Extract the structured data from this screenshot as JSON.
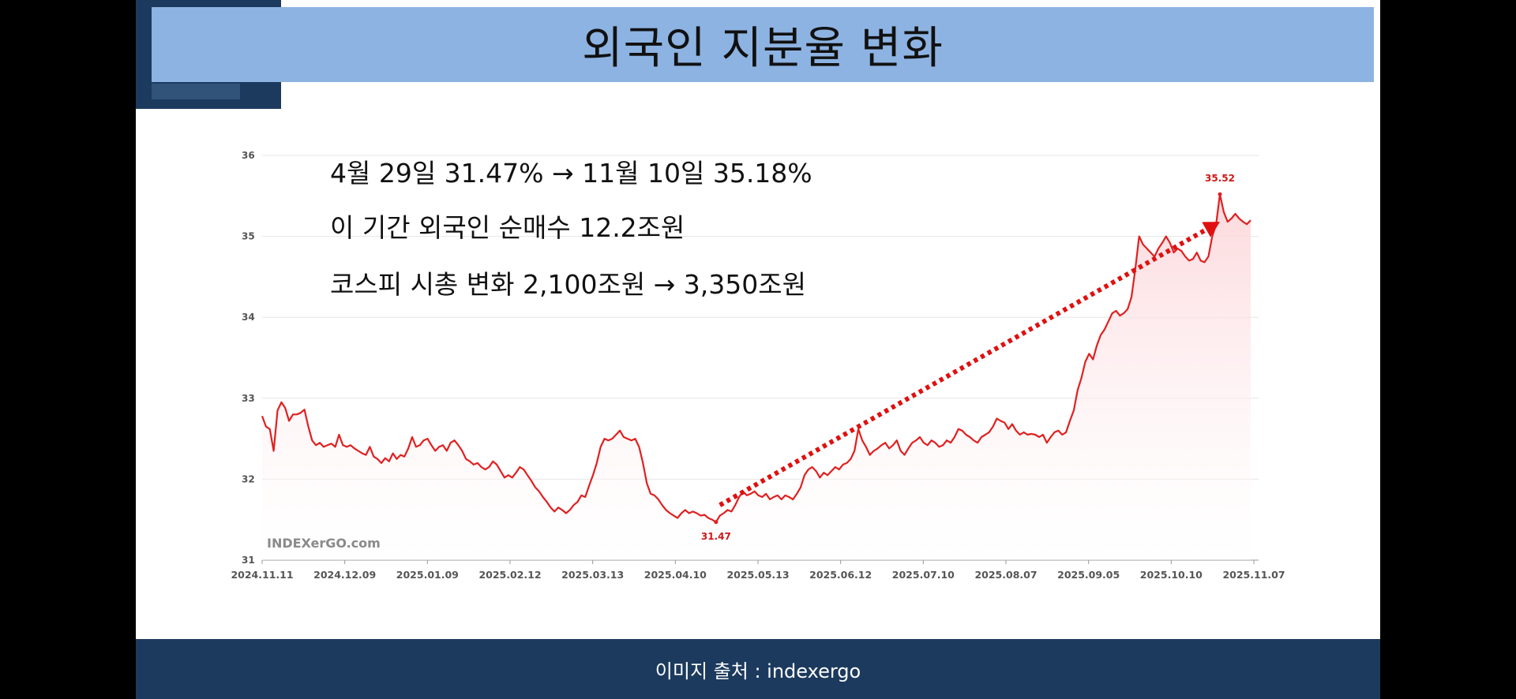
{
  "slide_title": "외국인 지분율 변화",
  "notes": [
    "4월 29일 31.47% → 11월 10일 35.18%",
    "이 기간 외국인 순매수 12.2조원",
    "코스피 시총 변화 2,100조원 → 3,350조원"
  ],
  "footer": "이미지 출처  : indexergo",
  "watermark": "INDEXerGO.com",
  "colors": {
    "line": "#e02020",
    "fill": "#fde4e6",
    "title_bar": "#8db3e2",
    "footer_bar": "#1c3a5e"
  },
  "chart_data": {
    "type": "line",
    "title": "",
    "xlabel": "",
    "ylabel": "",
    "ylim": [
      31,
      36
    ],
    "grid": true,
    "x_ticks": [
      "2024.11.11",
      "2024.12.09",
      "2025.01.09",
      "2025.02.12",
      "2025.03.13",
      "2025.04.10",
      "2025.05.13",
      "2025.06.12",
      "2025.07.10",
      "2025.08.07",
      "2025.09.05",
      "2025.10.10",
      "2025.11.07"
    ],
    "y_ticks": [
      31,
      32,
      33,
      34,
      35,
      36
    ],
    "series": [
      {
        "values": [
          32.78,
          32.65,
          32.62,
          32.35,
          32.85,
          32.95,
          32.88,
          32.72,
          32.8,
          32.8,
          32.82,
          32.86,
          32.65,
          32.48,
          32.42,
          32.45,
          32.4,
          32.42,
          32.44,
          32.4,
          32.55,
          32.42,
          32.4,
          32.42,
          32.38,
          32.35,
          32.32,
          32.3,
          32.4,
          32.28,
          32.25,
          32.2,
          32.26,
          32.22,
          32.32,
          32.25,
          32.3,
          32.28,
          32.38,
          32.52,
          32.4,
          32.42,
          32.48,
          32.5,
          32.42,
          32.35,
          32.4,
          32.42,
          32.35,
          32.45,
          32.48,
          32.42,
          32.35,
          32.25,
          32.22,
          32.18,
          32.2,
          32.15,
          32.12,
          32.15,
          32.22,
          32.18,
          32.1,
          32.02,
          32.05,
          32.02,
          32.08,
          32.15,
          32.12,
          32.05,
          31.98,
          31.9,
          31.85,
          31.78,
          31.72,
          31.65,
          31.6,
          31.65,
          31.62,
          31.58,
          31.62,
          31.68,
          31.72,
          31.8,
          31.78,
          31.92,
          32.05,
          32.2,
          32.4,
          32.5,
          32.48,
          32.5,
          32.55,
          32.6,
          32.52,
          32.5,
          32.48,
          32.5,
          32.4,
          32.2,
          31.95,
          31.82,
          31.8,
          31.75,
          31.68,
          31.62,
          31.58,
          31.55,
          31.52,
          31.58,
          31.62,
          31.58,
          31.6,
          31.58,
          31.55,
          31.56,
          31.52,
          31.5,
          31.47,
          31.55,
          31.58,
          31.62,
          31.6,
          31.68,
          31.78,
          31.85,
          31.8,
          31.82,
          31.85,
          31.8,
          31.78,
          31.82,
          31.75,
          31.78,
          31.8,
          31.75,
          31.8,
          31.78,
          31.75,
          31.82,
          31.9,
          32.05,
          32.12,
          32.15,
          32.1,
          32.02,
          32.08,
          32.05,
          32.1,
          32.15,
          32.12,
          32.18,
          32.2,
          32.25,
          32.35,
          32.62,
          32.48,
          32.4,
          32.3,
          32.35,
          32.38,
          32.42,
          32.45,
          32.38,
          32.42,
          32.48,
          32.35,
          32.3,
          32.38,
          32.45,
          32.48,
          32.52,
          32.45,
          32.42,
          32.48,
          32.45,
          32.4,
          32.42,
          32.48,
          32.45,
          32.52,
          32.62,
          32.6,
          32.55,
          32.52,
          32.48,
          32.45,
          32.52,
          32.55,
          32.58,
          32.65,
          32.75,
          32.72,
          32.7,
          32.62,
          32.68,
          32.6,
          32.55,
          32.58,
          32.55,
          32.56,
          32.55,
          32.52,
          32.55,
          32.45,
          32.52,
          32.58,
          32.6,
          32.55,
          32.58,
          32.72,
          32.85,
          33.1,
          33.25,
          33.45,
          33.55,
          33.48,
          33.65,
          33.78,
          33.85,
          33.95,
          34.05,
          34.08,
          34.02,
          34.05,
          34.1,
          34.25,
          34.6,
          35.0,
          34.9,
          34.85,
          34.8,
          34.75,
          34.85,
          34.92,
          35.0,
          34.92,
          34.8,
          34.85,
          34.82,
          34.75,
          34.7,
          34.72,
          34.8,
          34.7,
          34.68,
          34.75,
          35.0,
          35.15,
          35.52,
          35.3,
          35.18,
          35.22,
          35.28,
          35.22,
          35.18,
          35.15,
          35.2
        ],
        "min_label": "31.47",
        "max_label": "35.52"
      }
    ],
    "trend": {
      "from": [
        119,
        31.68
      ],
      "to": [
        249,
        35.18
      ]
    }
  }
}
